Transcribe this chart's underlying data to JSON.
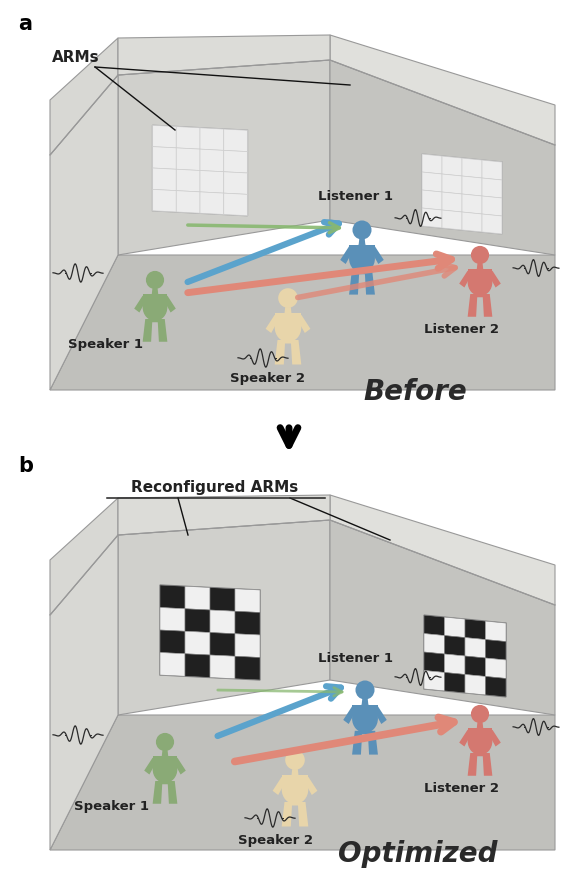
{
  "panel_a_label": "a",
  "panel_b_label": "b",
  "panel_a_title": "Before",
  "panel_b_title": "Optimized",
  "arms_label": "ARMs",
  "reconfig_arms_label": "Reconfigured ARMs",
  "speaker1_label": "Speaker 1",
  "speaker2_label": "Speaker 2",
  "listener1_label": "Listener 1",
  "listener2_label": "Listener 2",
  "color_speaker1": "#8aaa76",
  "color_speaker2": "#e8d5aa",
  "color_listener1": "#5a90b8",
  "color_listener2": "#d47870",
  "arrow_blue": "#5ba3cc",
  "arrow_green": "#88b870",
  "arrow_red": "#e08878",
  "wall_back_left": "#d0d0cc",
  "wall_back_right": "#c4c4c0",
  "wall_left": "#d8d8d4",
  "floor_color": "#c0c0bc",
  "room_edge": "#aaaaaa",
  "grid_white_bg": "#e4e4e4",
  "grid_white_cell": "#f4f4f4",
  "grid_white_line": "#bbbbbb",
  "grid_checker_white": "#f0f0f0",
  "grid_checker_black": "#202020",
  "label_color": "#222222",
  "title_color": "#333333"
}
